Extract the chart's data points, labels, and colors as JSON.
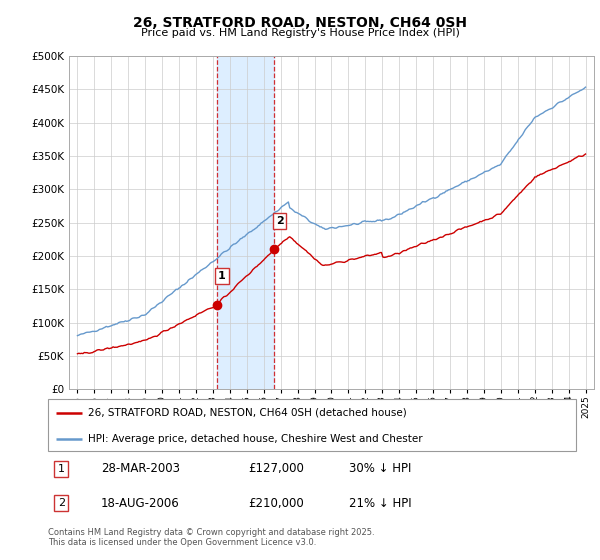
{
  "title": "26, STRATFORD ROAD, NESTON, CH64 0SH",
  "subtitle": "Price paid vs. HM Land Registry's House Price Index (HPI)",
  "ylim": [
    0,
    500000
  ],
  "yticks": [
    0,
    50000,
    100000,
    150000,
    200000,
    250000,
    300000,
    350000,
    400000,
    450000,
    500000
  ],
  "sale1_date": "28-MAR-2003",
  "sale1_price": 127000,
  "sale1_hpi": "30% ↓ HPI",
  "sale1_year": 2003.23,
  "sale2_date": "18-AUG-2006",
  "sale2_price": 210000,
  "sale2_hpi": "21% ↓ HPI",
  "sale2_year": 2006.63,
  "legend_label1": "26, STRATFORD ROAD, NESTON, CH64 0SH (detached house)",
  "legend_label2": "HPI: Average price, detached house, Cheshire West and Chester",
  "footer": "Contains HM Land Registry data © Crown copyright and database right 2025.\nThis data is licensed under the Open Government Licence v3.0.",
  "red_color": "#cc0000",
  "blue_color": "#6699cc",
  "highlight_color": "#ddeeff",
  "shade1_xmin": 2003.23,
  "shade1_xmax": 2006.63,
  "xlim_left": 1994.5,
  "xlim_right": 2025.5,
  "xtick_years": [
    1995,
    1996,
    1997,
    1998,
    1999,
    2000,
    2001,
    2002,
    2003,
    2004,
    2005,
    2006,
    2007,
    2008,
    2009,
    2010,
    2011,
    2012,
    2013,
    2014,
    2015,
    2016,
    2017,
    2018,
    2019,
    2020,
    2021,
    2022,
    2023,
    2024,
    2025
  ]
}
